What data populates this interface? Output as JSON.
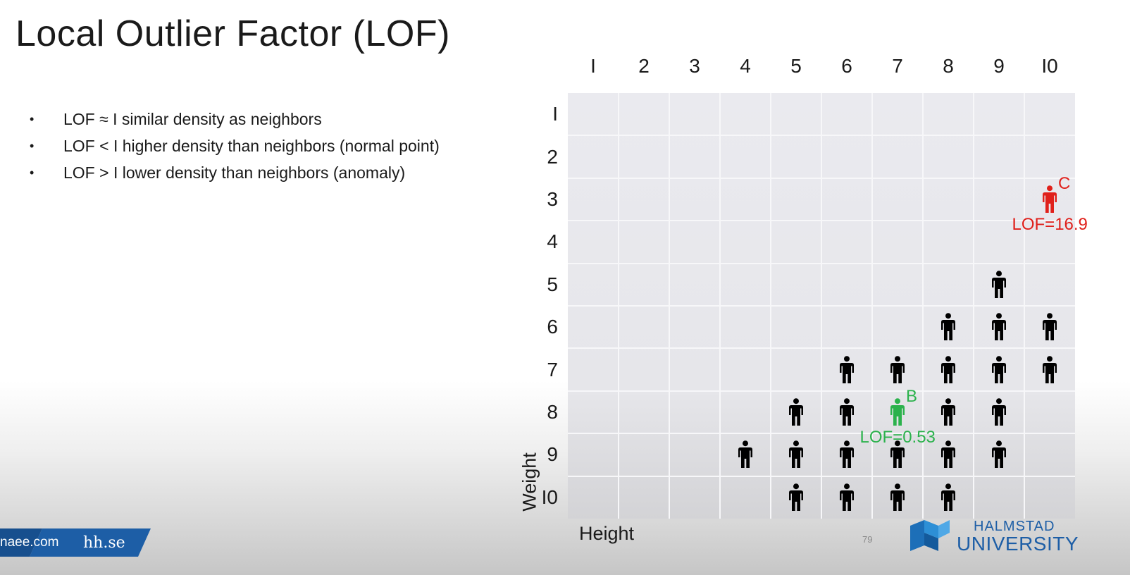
{
  "slide": {
    "title": "Local Outlier Factor (LOF)",
    "page_number": "79"
  },
  "bullets": [
    {
      "text": "LOF ≈ I similar density as neighbors"
    },
    {
      "text": "LOF < I higher density than neighbors (normal point)"
    },
    {
      "text": "LOF > I lower density than neighbors (anomaly)"
    }
  ],
  "bullet_symbol": "•",
  "grid": {
    "x_labels": [
      "I",
      "2",
      "3",
      "4",
      "5",
      "6",
      "7",
      "8",
      "9",
      "I0"
    ],
    "y_labels": [
      "I",
      "2",
      "3",
      "4",
      "5",
      "6",
      "7",
      "8",
      "9",
      "I0"
    ],
    "x_axis_label": "Height",
    "y_axis_label": "Weight",
    "points": [
      {
        "x": 9,
        "y": 5
      },
      {
        "x": 8,
        "y": 6
      },
      {
        "x": 9,
        "y": 6
      },
      {
        "x": 10,
        "y": 6
      },
      {
        "x": 6,
        "y": 7
      },
      {
        "x": 7,
        "y": 7
      },
      {
        "x": 8,
        "y": 7
      },
      {
        "x": 9,
        "y": 7
      },
      {
        "x": 10,
        "y": 7
      },
      {
        "x": 5,
        "y": 8
      },
      {
        "x": 6,
        "y": 8
      },
      {
        "x": 8,
        "y": 8
      },
      {
        "x": 9,
        "y": 8
      },
      {
        "x": 4,
        "y": 9
      },
      {
        "x": 5,
        "y": 9
      },
      {
        "x": 6,
        "y": 9
      },
      {
        "x": 7,
        "y": 9
      },
      {
        "x": 8,
        "y": 9
      },
      {
        "x": 9,
        "y": 9
      },
      {
        "x": 5,
        "y": 10
      },
      {
        "x": 6,
        "y": 10
      },
      {
        "x": 7,
        "y": 10
      },
      {
        "x": 8,
        "y": 10
      }
    ],
    "highlighted": [
      {
        "id": "C",
        "x": 10,
        "y": 3,
        "label": "C",
        "lof_text": "LOF=16.9",
        "color": "#e0201b"
      },
      {
        "id": "B",
        "x": 7,
        "y": 8,
        "label": "B",
        "lof_text": "LOF=0.53",
        "color": "#2bb24c"
      }
    ],
    "point_color": "#000000",
    "icon": "person-icon"
  },
  "footer": {
    "banner_text_left": "naee.com",
    "banner_text_right": "hh.se",
    "banner_color": "#1d5ea6",
    "logo_top": "HALMSTAD",
    "logo_bottom": "UNIVERSITY",
    "logo_color": "#1d5ea6"
  }
}
